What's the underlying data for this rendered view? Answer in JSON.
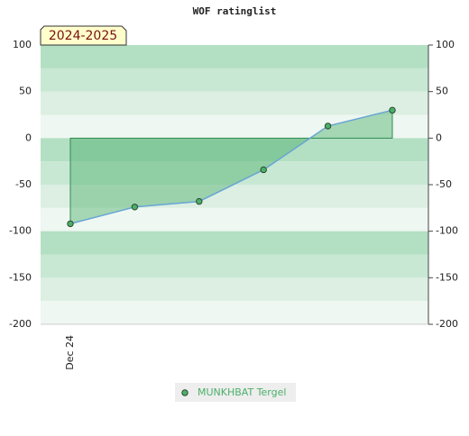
{
  "chart_data": {
    "type": "line",
    "title": "WOF ratinglist",
    "badge": "2024-2025",
    "categories": [
      "Dec 24",
      null,
      null,
      null,
      null,
      null
    ],
    "series": [
      {
        "name": "MUNKHBAT Tergel",
        "color": "#4caf6a",
        "values": [
          -92,
          -74,
          -68,
          -34,
          13,
          30
        ]
      }
    ],
    "ylim": [
      -200,
      100
    ],
    "yticks": [
      -200,
      -150,
      -100,
      -50,
      0,
      50,
      100
    ]
  }
}
